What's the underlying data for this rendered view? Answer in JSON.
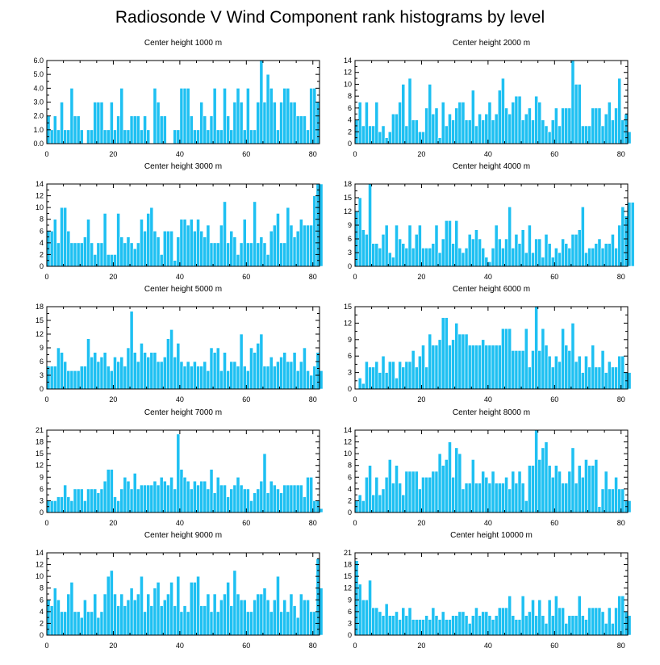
{
  "title": "Radiosonde V Wind Component rank histograms by level",
  "colors": {
    "bar_fill": "#1ec0f2",
    "bar_stroke": "#ffffff",
    "axis": "#000000"
  },
  "chart_data": [
    {
      "type": "bar",
      "title": "Center height 1000 m",
      "xlim": [
        0,
        82
      ],
      "xticks": [
        0,
        20,
        40,
        60,
        80
      ],
      "ylim": [
        0,
        6
      ],
      "yticks": [
        0,
        1,
        2,
        3,
        4,
        5,
        6
      ],
      "ytick_labels": [
        "0.0",
        "1.0",
        "2.0",
        "3.0",
        "4.0",
        "5.0",
        "6.0"
      ],
      "values": [
        2,
        1,
        2,
        1,
        3,
        1,
        1,
        4,
        2,
        2,
        1,
        0,
        1,
        1,
        3,
        3,
        3,
        1,
        1,
        3,
        1,
        2,
        4,
        1,
        1,
        2,
        2,
        2,
        1,
        2,
        1,
        0,
        4,
        3,
        2,
        2,
        0,
        0,
        1,
        1,
        4,
        4,
        4,
        2,
        1,
        1,
        3,
        2,
        1,
        2,
        4,
        1,
        1,
        4,
        2,
        1,
        3,
        4,
        3,
        1,
        4,
        1,
        1,
        3,
        6,
        3,
        5,
        4,
        3,
        1,
        3,
        4,
        4,
        3,
        3,
        2,
        2,
        2,
        1,
        4,
        4,
        3
      ]
    },
    {
      "type": "bar",
      "title": "Center height 2000 m",
      "xlim": [
        0,
        82
      ],
      "xticks": [
        0,
        20,
        40,
        60,
        80
      ],
      "ylim": [
        0,
        14
      ],
      "yticks": [
        0,
        2,
        4,
        6,
        8,
        10,
        12,
        14
      ],
      "ytick_labels": [
        "0",
        "2",
        "4",
        "6",
        "8",
        "10",
        "12",
        "14"
      ],
      "values": [
        4,
        7,
        3,
        7,
        3,
        3,
        7,
        2,
        3,
        1,
        2,
        5,
        5,
        7,
        10,
        3,
        11,
        4,
        4,
        2,
        2,
        6,
        10,
        5,
        6,
        1,
        7,
        3,
        5,
        4,
        6,
        7,
        7,
        4,
        4,
        9,
        3,
        5,
        4,
        5,
        7,
        4,
        5,
        9,
        11,
        6,
        5,
        7,
        8,
        8,
        4,
        5,
        6,
        4,
        8,
        7,
        4,
        3,
        2,
        4,
        6,
        3,
        6,
        6,
        6,
        14,
        10,
        10,
        3,
        3,
        3,
        6,
        6,
        6,
        3,
        5,
        7,
        4,
        6,
        11,
        4,
        5,
        2
      ]
    },
    {
      "type": "bar",
      "title": "Center height 3000 m",
      "xlim": [
        0,
        82
      ],
      "xticks": [
        0,
        20,
        40,
        60,
        80
      ],
      "ylim": [
        0,
        14
      ],
      "yticks": [
        0,
        2,
        4,
        6,
        8,
        10,
        12,
        14
      ],
      "ytick_labels": [
        "0",
        "2",
        "4",
        "6",
        "8",
        "10",
        "12",
        "14"
      ],
      "values": [
        6,
        6,
        8,
        4,
        10,
        10,
        6,
        4,
        4,
        4,
        4,
        5,
        8,
        4,
        2,
        4,
        4,
        9,
        2,
        2,
        2,
        9,
        5,
        4,
        5,
        4,
        3,
        4,
        8,
        6,
        9,
        10,
        6,
        5,
        2,
        6,
        6,
        6,
        1,
        5,
        8,
        8,
        7,
        8,
        6,
        8,
        6,
        5,
        7,
        4,
        4,
        4,
        7,
        11,
        4,
        6,
        5,
        2,
        4,
        8,
        4,
        4,
        11,
        4,
        5,
        4,
        2,
        6,
        7,
        9,
        4,
        4,
        10,
        7,
        5,
        6,
        8,
        7,
        7,
        7,
        12,
        14,
        14
      ]
    },
    {
      "type": "bar",
      "title": "Center height 4000 m",
      "xlim": [
        0,
        82
      ],
      "xticks": [
        0,
        20,
        40,
        60,
        80
      ],
      "ylim": [
        0,
        18
      ],
      "yticks": [
        0,
        3,
        6,
        9,
        12,
        15,
        18
      ],
      "ytick_labels": [
        "0",
        "3",
        "6",
        "9",
        "12",
        "15",
        "18"
      ],
      "values": [
        12,
        15,
        8,
        7,
        18,
        5,
        5,
        4,
        7,
        9,
        3,
        2,
        9,
        6,
        5,
        4,
        9,
        4,
        7,
        9,
        4,
        4,
        4,
        5,
        9,
        3,
        6,
        10,
        10,
        5,
        10,
        4,
        3,
        4,
        7,
        6,
        8,
        6,
        4,
        2,
        1,
        4,
        9,
        6,
        4,
        6,
        13,
        4,
        7,
        5,
        8,
        3,
        9,
        3,
        6,
        6,
        2,
        7,
        5,
        2,
        4,
        3,
        6,
        5,
        4,
        7,
        7,
        8,
        13,
        3,
        4,
        4,
        5,
        6,
        4,
        5,
        5,
        7,
        4,
        9,
        13,
        11,
        14,
        14
      ]
    },
    {
      "type": "bar",
      "title": "Center height 5000 m",
      "xlim": [
        0,
        82
      ],
      "xticks": [
        0,
        20,
        40,
        60,
        80
      ],
      "ylim": [
        0,
        18
      ],
      "yticks": [
        0,
        3,
        6,
        9,
        12,
        15,
        18
      ],
      "ytick_labels": [
        "0",
        "3",
        "6",
        "9",
        "12",
        "15",
        "18"
      ],
      "values": [
        5,
        5,
        5,
        9,
        8,
        6,
        4,
        4,
        4,
        4,
        5,
        5,
        11,
        7,
        8,
        6,
        7,
        8,
        5,
        4,
        7,
        6,
        7,
        5,
        9,
        17,
        8,
        6,
        10,
        8,
        7,
        8,
        8,
        6,
        6,
        7,
        11,
        13,
        7,
        10,
        6,
        5,
        6,
        5,
        6,
        5,
        5,
        6,
        4,
        9,
        8,
        9,
        4,
        8,
        4,
        6,
        6,
        5,
        12,
        5,
        4,
        9,
        8,
        10,
        12,
        5,
        5,
        7,
        5,
        6,
        7,
        8,
        6,
        6,
        8,
        4,
        6,
        9,
        4,
        3,
        5,
        8,
        4
      ]
    },
    {
      "type": "bar",
      "title": "Center height 6000 m",
      "xlim": [
        0,
        82
      ],
      "xticks": [
        0,
        20,
        40,
        60,
        80
      ],
      "ylim": [
        0,
        15
      ],
      "yticks": [
        0,
        3,
        6,
        9,
        12,
        15
      ],
      "ytick_labels": [
        "0",
        "3",
        "6",
        "9",
        "12",
        "15"
      ],
      "values": [
        0,
        2,
        1,
        5,
        4,
        4,
        5,
        3,
        6,
        3,
        5,
        5,
        2,
        5,
        4,
        5,
        5,
        7,
        4,
        6,
        8,
        4,
        10,
        8,
        8,
        9,
        13,
        13,
        8,
        9,
        12,
        10,
        10,
        10,
        8,
        8,
        8,
        8,
        9,
        8,
        8,
        8,
        8,
        8,
        11,
        11,
        11,
        7,
        7,
        7,
        7,
        11,
        4,
        7,
        15,
        7,
        11,
        8,
        6,
        4,
        6,
        5,
        11,
        8,
        7,
        12,
        5,
        6,
        3,
        6,
        4,
        8,
        4,
        4,
        7,
        3,
        5,
        4,
        4,
        6,
        6,
        3,
        3
      ]
    },
    {
      "type": "bar",
      "title": "Center height 7000 m",
      "xlim": [
        0,
        82
      ],
      "xticks": [
        0,
        20,
        40,
        60,
        80
      ],
      "ylim": [
        0,
        21
      ],
      "yticks": [
        0,
        3,
        6,
        9,
        12,
        15,
        18,
        21
      ],
      "ytick_labels": [
        "0",
        "3",
        "6",
        "9",
        "12",
        "15",
        "18",
        "21"
      ],
      "values": [
        3,
        3,
        3,
        4,
        4,
        7,
        4,
        3,
        6,
        6,
        6,
        3,
        6,
        6,
        6,
        5,
        6,
        8,
        11,
        11,
        4,
        3,
        6,
        9,
        8,
        6,
        10,
        6,
        7,
        7,
        7,
        7,
        8,
        7,
        9,
        8,
        7,
        9,
        6,
        20,
        11,
        9,
        8,
        6,
        8,
        7,
        8,
        8,
        6,
        11,
        5,
        9,
        7,
        7,
        4,
        6,
        7,
        9,
        7,
        6,
        6,
        3,
        5,
        6,
        8,
        15,
        5,
        8,
        7,
        6,
        5,
        7,
        7,
        7,
        7,
        7,
        7,
        4,
        9,
        9,
        3,
        3,
        1
      ]
    },
    {
      "type": "bar",
      "title": "Center height 8000 m",
      "xlim": [
        0,
        82
      ],
      "xticks": [
        0,
        20,
        40,
        60,
        80
      ],
      "ylim": [
        0,
        14
      ],
      "yticks": [
        0,
        2,
        4,
        6,
        8,
        10,
        12,
        14
      ],
      "ytick_labels": [
        "0",
        "2",
        "4",
        "6",
        "8",
        "10",
        "12",
        "14"
      ],
      "values": [
        2,
        3,
        2,
        6,
        8,
        3,
        6,
        3,
        4,
        6,
        9,
        5,
        8,
        5,
        3,
        7,
        7,
        7,
        7,
        4,
        6,
        6,
        6,
        7,
        7,
        10,
        8,
        9,
        12,
        6,
        11,
        10,
        4,
        5,
        5,
        9,
        5,
        5,
        7,
        6,
        5,
        7,
        5,
        5,
        5,
        6,
        4,
        7,
        5,
        7,
        5,
        2,
        8,
        8,
        14,
        9,
        11,
        12,
        8,
        6,
        8,
        7,
        5,
        5,
        7,
        11,
        5,
        8,
        6,
        9,
        8,
        8,
        9,
        1,
        4,
        7,
        4,
        4,
        6,
        4,
        4,
        2,
        2
      ]
    },
    {
      "type": "bar",
      "title": "Center height 9000 m",
      "xlim": [
        0,
        82
      ],
      "xticks": [
        0,
        20,
        40,
        60,
        80
      ],
      "ylim": [
        0,
        14
      ],
      "yticks": [
        0,
        2,
        4,
        6,
        8,
        10,
        12,
        14
      ],
      "ytick_labels": [
        "0",
        "2",
        "4",
        "6",
        "8",
        "10",
        "12",
        "14"
      ],
      "values": [
        6,
        5,
        8,
        6,
        4,
        4,
        7,
        9,
        4,
        4,
        3,
        6,
        4,
        4,
        7,
        3,
        4,
        7,
        10,
        11,
        7,
        5,
        7,
        5,
        6,
        8,
        6,
        7,
        10,
        4,
        7,
        5,
        8,
        9,
        5,
        6,
        7,
        9,
        5,
        10,
        4,
        5,
        4,
        9,
        9,
        10,
        5,
        5,
        7,
        4,
        7,
        4,
        6,
        7,
        9,
        5,
        11,
        7,
        6,
        6,
        4,
        4,
        6,
        7,
        7,
        8,
        6,
        4,
        6,
        10,
        4,
        6,
        4,
        7,
        5,
        3,
        7,
        6,
        6,
        4,
        4,
        13,
        8
      ]
    },
    {
      "type": "bar",
      "title": "Center height 10000 m",
      "xlim": [
        0,
        82
      ],
      "xticks": [
        0,
        20,
        40,
        60,
        80
      ],
      "ylim": [
        0,
        21
      ],
      "yticks": [
        0,
        3,
        6,
        9,
        12,
        15,
        18,
        21
      ],
      "ytick_labels": [
        "0",
        "3",
        "6",
        "9",
        "12",
        "15",
        "18",
        "21"
      ],
      "values": [
        19,
        13,
        9,
        9,
        14,
        7,
        7,
        6,
        5,
        8,
        5,
        5,
        6,
        4,
        7,
        5,
        7,
        4,
        4,
        4,
        4,
        5,
        4,
        7,
        5,
        4,
        6,
        4,
        4,
        5,
        5,
        6,
        6,
        5,
        3,
        5,
        7,
        5,
        6,
        6,
        5,
        4,
        5,
        7,
        7,
        7,
        10,
        5,
        4,
        4,
        10,
        5,
        6,
        9,
        5,
        9,
        5,
        3,
        9,
        5,
        10,
        7,
        7,
        3,
        5,
        5,
        5,
        10,
        5,
        4,
        7,
        7,
        7,
        7,
        6,
        3,
        7,
        3,
        7,
        10,
        10,
        6,
        5
      ]
    }
  ]
}
